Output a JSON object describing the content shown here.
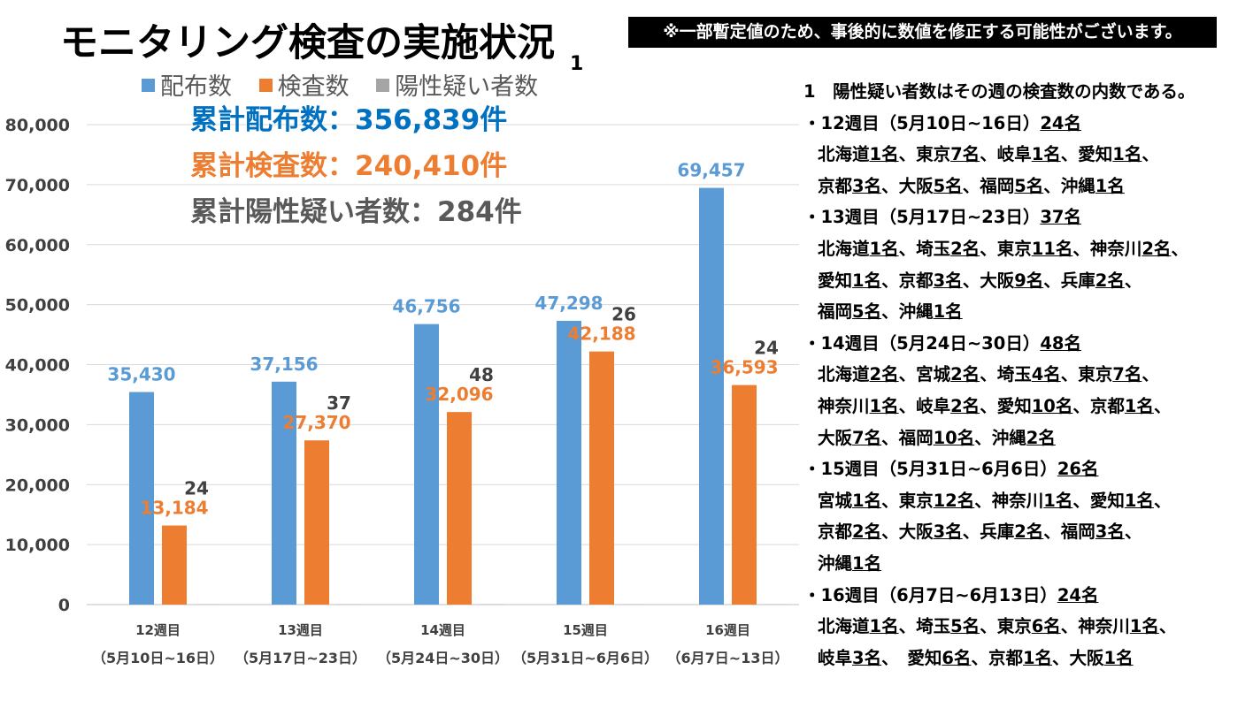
{
  "title": "モニタリング検査の実施状況",
  "footnote_marker": "1",
  "notice": "※一部暫定値のため、事後的に数値を修正する可能性がございます。",
  "legend": [
    {
      "label": "配布数",
      "color": "#5b9bd5"
    },
    {
      "label": "検査数",
      "color": "#ed7d31"
    },
    {
      "label": "陽性疑い者数",
      "color": "#a5a5a5"
    }
  ],
  "totals": {
    "distributed": "累計配布数：356,839件",
    "tested": "累計検査数：240,410件",
    "positive": "累計陽性疑い者数：284件"
  },
  "chart_data": {
    "type": "bar",
    "categories": [
      [
        "12週目",
        "（5月10日~16日）"
      ],
      [
        "13週目",
        "（5月17日~23日）"
      ],
      [
        "14週目",
        "（5月24日~30日）"
      ],
      [
        "15週目",
        "（5月31日~6月6日）"
      ],
      [
        "16週目",
        "（6月7日~13日）"
      ]
    ],
    "series": [
      {
        "name": "配布数",
        "color": "#5b9bd5",
        "label_color": "#5b9bd5",
        "values": [
          35430,
          37156,
          46756,
          47298,
          69457
        ]
      },
      {
        "name": "検査数",
        "color": "#ed7d31",
        "label_color": "#ed7d31",
        "values": [
          13184,
          27370,
          32096,
          42188,
          36593
        ]
      },
      {
        "name": "陽性疑い者数",
        "color": "#a5a5a5",
        "label_color": "#404040",
        "values": [
          24,
          37,
          48,
          26,
          24
        ]
      }
    ],
    "yticks": [
      "0",
      "10,000",
      "20,000",
      "30,000",
      "40,000",
      "50,000",
      "60,000",
      "70,000",
      "80,000"
    ],
    "ylim": [
      0,
      80000
    ],
    "grid": true,
    "legend_position": "top"
  },
  "notes": [
    {
      "indent": false,
      "segments": [
        {
          "t": "1　陽性疑い者数はその週の検査数の内数である。"
        }
      ]
    },
    {
      "indent": false,
      "segments": [
        {
          "t": "・12週目（5月10日~16日）"
        },
        {
          "t": "24名",
          "u": true
        }
      ]
    },
    {
      "indent": true,
      "segments": [
        {
          "t": "北海道"
        },
        {
          "t": "1名",
          "u": true
        },
        {
          "t": "、東京"
        },
        {
          "t": "7名",
          "u": true
        },
        {
          "t": "、岐阜"
        },
        {
          "t": "1名",
          "u": true
        },
        {
          "t": "、愛知"
        },
        {
          "t": "1名",
          "u": true
        },
        {
          "t": "、"
        }
      ]
    },
    {
      "indent": true,
      "segments": [
        {
          "t": "京都"
        },
        {
          "t": "3名",
          "u": true
        },
        {
          "t": "、大阪"
        },
        {
          "t": "5名",
          "u": true
        },
        {
          "t": "、福岡"
        },
        {
          "t": "5名",
          "u": true
        },
        {
          "t": "、沖縄"
        },
        {
          "t": "1名",
          "u": true
        }
      ]
    },
    {
      "indent": false,
      "segments": [
        {
          "t": "・13週目（5月17日~23日）"
        },
        {
          "t": "37名",
          "u": true
        }
      ]
    },
    {
      "indent": true,
      "segments": [
        {
          "t": "北海道"
        },
        {
          "t": "1名",
          "u": true
        },
        {
          "t": "、埼玉"
        },
        {
          "t": "2名",
          "u": true
        },
        {
          "t": "、東京"
        },
        {
          "t": "11名",
          "u": true
        },
        {
          "t": "、神奈川"
        },
        {
          "t": "2名",
          "u": true
        },
        {
          "t": "、"
        }
      ]
    },
    {
      "indent": true,
      "segments": [
        {
          "t": "愛知"
        },
        {
          "t": "1名",
          "u": true
        },
        {
          "t": "、京都"
        },
        {
          "t": "3名",
          "u": true
        },
        {
          "t": "、大阪"
        },
        {
          "t": "9名",
          "u": true
        },
        {
          "t": "、兵庫"
        },
        {
          "t": "2名",
          "u": true
        },
        {
          "t": "、"
        }
      ]
    },
    {
      "indent": true,
      "segments": [
        {
          "t": "福岡"
        },
        {
          "t": "5名",
          "u": true
        },
        {
          "t": "、沖縄"
        },
        {
          "t": "1名",
          "u": true
        }
      ]
    },
    {
      "indent": false,
      "segments": [
        {
          "t": "・14週目（5月24日~30日）"
        },
        {
          "t": "48名",
          "u": true
        }
      ]
    },
    {
      "indent": true,
      "segments": [
        {
          "t": "北海道"
        },
        {
          "t": "2名",
          "u": true
        },
        {
          "t": "、宮城"
        },
        {
          "t": "2名",
          "u": true
        },
        {
          "t": "、埼玉"
        },
        {
          "t": "4名",
          "u": true
        },
        {
          "t": "、東京"
        },
        {
          "t": "7名",
          "u": true
        },
        {
          "t": "、"
        }
      ]
    },
    {
      "indent": true,
      "segments": [
        {
          "t": "神奈川"
        },
        {
          "t": "1名",
          "u": true
        },
        {
          "t": "、岐阜"
        },
        {
          "t": "2名",
          "u": true
        },
        {
          "t": "、愛知"
        },
        {
          "t": "10名",
          "u": true
        },
        {
          "t": "、京都"
        },
        {
          "t": "1名",
          "u": true
        },
        {
          "t": "、"
        }
      ]
    },
    {
      "indent": true,
      "segments": [
        {
          "t": "大阪"
        },
        {
          "t": "7名",
          "u": true
        },
        {
          "t": "、福岡"
        },
        {
          "t": "10名",
          "u": true
        },
        {
          "t": "、沖縄"
        },
        {
          "t": "2名",
          "u": true
        }
      ]
    },
    {
      "indent": false,
      "segments": [
        {
          "t": "・15週目（5月31日~6月6日）"
        },
        {
          "t": "26名",
          "u": true
        }
      ]
    },
    {
      "indent": true,
      "segments": [
        {
          "t": "宮城"
        },
        {
          "t": "1名",
          "u": true
        },
        {
          "t": "、東京"
        },
        {
          "t": "12名",
          "u": true
        },
        {
          "t": "、神奈川"
        },
        {
          "t": "1名",
          "u": true
        },
        {
          "t": "、愛知"
        },
        {
          "t": "1名",
          "u": true
        },
        {
          "t": "、"
        }
      ]
    },
    {
      "indent": true,
      "segments": [
        {
          "t": "京都"
        },
        {
          "t": "2名",
          "u": true
        },
        {
          "t": "、大阪"
        },
        {
          "t": "3名",
          "u": true
        },
        {
          "t": "、兵庫"
        },
        {
          "t": "2名",
          "u": true
        },
        {
          "t": "、福岡"
        },
        {
          "t": "3名",
          "u": true
        },
        {
          "t": "、"
        }
      ]
    },
    {
      "indent": true,
      "segments": [
        {
          "t": "沖縄"
        },
        {
          "t": "1名",
          "u": true
        }
      ]
    },
    {
      "indent": false,
      "segments": [
        {
          "t": "・16週目（6月7日~6月13日）"
        },
        {
          "t": "24名",
          "u": true
        }
      ]
    },
    {
      "indent": true,
      "segments": [
        {
          "t": "北海道"
        },
        {
          "t": "1名",
          "u": true
        },
        {
          "t": "、埼玉"
        },
        {
          "t": "5名",
          "u": true
        },
        {
          "t": "、東京"
        },
        {
          "t": "6名",
          "u": true
        },
        {
          "t": "、神奈川"
        },
        {
          "t": "1名",
          "u": true
        },
        {
          "t": "、"
        }
      ]
    },
    {
      "indent": true,
      "segments": [
        {
          "t": "岐阜"
        },
        {
          "t": "3名",
          "u": true
        },
        {
          "t": "、　愛知"
        },
        {
          "t": "6名",
          "u": true
        },
        {
          "t": "、京都"
        },
        {
          "t": "1名",
          "u": true
        },
        {
          "t": "、大阪"
        },
        {
          "t": "1名",
          "u": true
        }
      ]
    }
  ]
}
